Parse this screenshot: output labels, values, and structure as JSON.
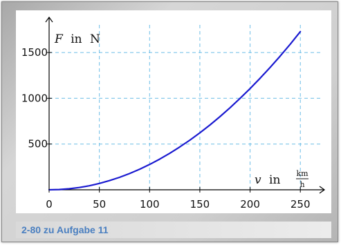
{
  "caption": "2-80 zu Aufgabe 11",
  "chart_data": {
    "type": "line",
    "title": "",
    "x_axis": {
      "variable": "v",
      "word": "in",
      "unit_numerator": "km",
      "unit_denominator": "h"
    },
    "y_axis": {
      "variable": "F",
      "word": "in",
      "unit": "N"
    },
    "x_ticks": [
      0,
      50,
      100,
      150,
      200,
      250
    ],
    "y_ticks": [
      500,
      1000,
      1500
    ],
    "x_tick_labels": [
      "0",
      "50",
      "100",
      "150",
      "200",
      "250"
    ],
    "y_tick_labels": [
      "500",
      "1000",
      "1500"
    ],
    "xlim": [
      0,
      265
    ],
    "ylim": [
      0,
      1870
    ],
    "grid": true,
    "series": [
      {
        "color": "#1a1ad0",
        "x": [
          0,
          10,
          20,
          30,
          40,
          50,
          60,
          70,
          80,
          90,
          100,
          110,
          120,
          130,
          140,
          150,
          160,
          170,
          180,
          190,
          200,
          210,
          220,
          230,
          240,
          250
        ],
        "y": [
          0,
          3,
          11,
          25,
          44,
          69,
          100,
          136,
          177,
          224,
          277,
          335,
          398,
          468,
          542,
          622,
          708,
          799,
          896,
          998,
          1106,
          1219,
          1338,
          1462,
          1592,
          1728
        ]
      }
    ],
    "colors": {
      "grid": "#6cbde6",
      "axis": "#000000",
      "curve": "#1a1ad0"
    }
  }
}
